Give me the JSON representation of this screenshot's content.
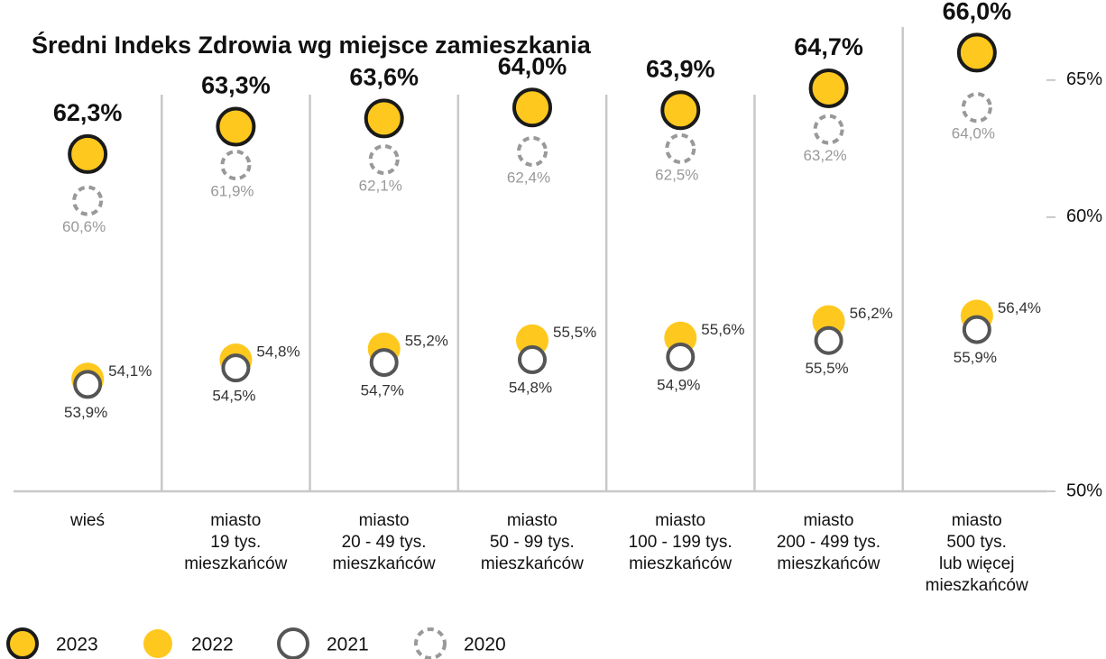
{
  "chart_data": {
    "type": "dot",
    "title": "Średni Indeks Zdrowia wg miejsce zamieszkania",
    "categories": [
      "wieś",
      "miasto\n19 tys.\nmieszkańców",
      "miasto\n20 - 49 tys.\nmieszkańców",
      "miasto\n50 - 99 tys.\nmieszkańców",
      "miasto\n100 - 199 tys.\nmieszkańców",
      "miasto\n200 - 499 tys.\nmieszkańców",
      "miasto\n500 tys.\nlub więcej\nmieszkańców"
    ],
    "series": [
      {
        "name": "2023",
        "color": "#ffc81e",
        "values": [
          62.3,
          63.3,
          63.6,
          64.0,
          63.9,
          64.7,
          66.0
        ],
        "value_labels": [
          "62,3%",
          "63,3%",
          "63,6%",
          "64,0%",
          "63,9%",
          "64,7%",
          "66,0%"
        ]
      },
      {
        "name": "2022",
        "color": "#ffc81e",
        "values": [
          54.1,
          54.8,
          55.2,
          55.5,
          55.6,
          56.2,
          56.4
        ],
        "value_labels": [
          "54,1%",
          "54,8%",
          "55,2%",
          "55,5%",
          "55,6%",
          "56,2%",
          "56,4%"
        ]
      },
      {
        "name": "2021",
        "color": "#555555",
        "values": [
          53.9,
          54.5,
          54.7,
          54.8,
          54.9,
          55.5,
          55.9
        ],
        "value_labels": [
          "53,9%",
          "54,5%",
          "54,7%",
          "54,8%",
          "54,9%",
          "55,5%",
          "55,9%"
        ]
      },
      {
        "name": "2020",
        "color": "#999999",
        "values": [
          60.6,
          61.9,
          62.1,
          62.4,
          62.5,
          63.2,
          64.0
        ],
        "value_labels": [
          "60,6%",
          "61,9%",
          "62,1%",
          "62,4%",
          "62,5%",
          "63,2%",
          "64,0%"
        ]
      }
    ],
    "ylim": [
      50,
      67
    ],
    "yticks": [
      {
        "value": 50,
        "label": "50%"
      },
      {
        "value": 60,
        "label": "60%"
      },
      {
        "value": 65,
        "label": "65%"
      }
    ]
  }
}
